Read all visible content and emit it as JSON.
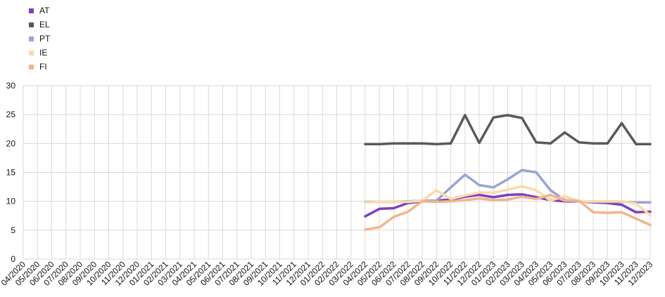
{
  "chart_data": {
    "type": "line",
    "categories": [
      "04/2020",
      "05/2020",
      "06/2020",
      "07/2020",
      "08/2020",
      "09/2020",
      "10/2020",
      "11/2020",
      "12/2020",
      "01/2021",
      "02/2021",
      "03/2021",
      "04/2021",
      "05/2021",
      "06/2021",
      "07/2021",
      "08/2021",
      "09/2021",
      "10/2021",
      "11/2021",
      "12/2021",
      "01/2022",
      "02/2022",
      "03/2022",
      "04/2022",
      "05/2022",
      "06/2022",
      "07/2022",
      "08/2022",
      "09/2022",
      "10/2022",
      "11/2022",
      "12/2022",
      "01/2023",
      "02/2023",
      "03/2023",
      "04/2023",
      "05/2023",
      "06/2023",
      "07/2023",
      "08/2023",
      "09/2023",
      "10/2023",
      "11/2023",
      "12/2023"
    ],
    "ylim": [
      0,
      30
    ],
    "yticks": [
      "0",
      "5",
      "10",
      "15",
      "20",
      "25",
      "30"
    ],
    "grid": true,
    "legend_position": "top-left",
    "series": [
      {
        "name": "AT",
        "color": "#7b3fc4",
        "values": [
          null,
          null,
          null,
          null,
          null,
          null,
          null,
          null,
          null,
          null,
          null,
          null,
          null,
          null,
          null,
          null,
          null,
          null,
          null,
          null,
          null,
          null,
          null,
          null,
          7.4,
          8.7,
          8.8,
          9.7,
          10.0,
          10.1,
          10.3,
          10.8,
          11.1,
          10.7,
          11.1,
          11.2,
          10.7,
          10.2,
          10.0,
          10.0,
          9.8,
          9.7,
          9.4,
          8.1,
          8.2
        ]
      },
      {
        "name": "EL",
        "color": "#595959",
        "values": [
          null,
          null,
          null,
          null,
          null,
          null,
          null,
          null,
          null,
          null,
          null,
          null,
          null,
          null,
          null,
          null,
          null,
          null,
          null,
          null,
          null,
          null,
          null,
          null,
          19.9,
          19.9,
          20.0,
          20.0,
          20.0,
          19.9,
          20.0,
          24.9,
          20.1,
          24.5,
          24.9,
          24.4,
          20.2,
          20.0,
          21.9,
          20.2,
          20.0,
          20.0,
          23.5,
          19.9,
          19.9
        ]
      },
      {
        "name": "PT",
        "color": "#9aa3d6",
        "values": [
          null,
          null,
          null,
          null,
          null,
          null,
          null,
          null,
          null,
          null,
          null,
          null,
          null,
          null,
          null,
          null,
          null,
          null,
          null,
          null,
          null,
          null,
          null,
          null,
          9.9,
          9.9,
          9.9,
          10.0,
          10.1,
          10.1,
          12.4,
          14.6,
          12.8,
          12.4,
          13.8,
          15.4,
          15.0,
          11.9,
          10.2,
          10.0,
          9.9,
          9.9,
          9.9,
          9.8,
          9.8
        ]
      },
      {
        "name": "IE",
        "color": "#fadba8",
        "values": [
          null,
          null,
          null,
          null,
          null,
          null,
          null,
          null,
          null,
          null,
          null,
          null,
          null,
          null,
          null,
          null,
          null,
          null,
          null,
          null,
          null,
          null,
          null,
          null,
          9.8,
          9.9,
          9.9,
          9.9,
          10.1,
          11.9,
          10.4,
          11.0,
          11.5,
          11.5,
          12.0,
          12.6,
          11.9,
          10.1,
          10.9,
          10.0,
          10.0,
          10.0,
          10.0,
          9.6,
          7.6
        ]
      },
      {
        "name": "FI",
        "color": "#f2b48a",
        "values": [
          null,
          null,
          null,
          null,
          null,
          null,
          null,
          null,
          null,
          null,
          null,
          null,
          null,
          null,
          null,
          null,
          null,
          null,
          null,
          null,
          null,
          null,
          null,
          null,
          5.1,
          5.5,
          7.3,
          8.2,
          10.0,
          9.9,
          10.0,
          10.2,
          10.5,
          10.2,
          10.3,
          10.8,
          10.4,
          11.1,
          10.1,
          10.1,
          8.1,
          8.0,
          8.1,
          7.0,
          5.9
        ]
      }
    ]
  }
}
